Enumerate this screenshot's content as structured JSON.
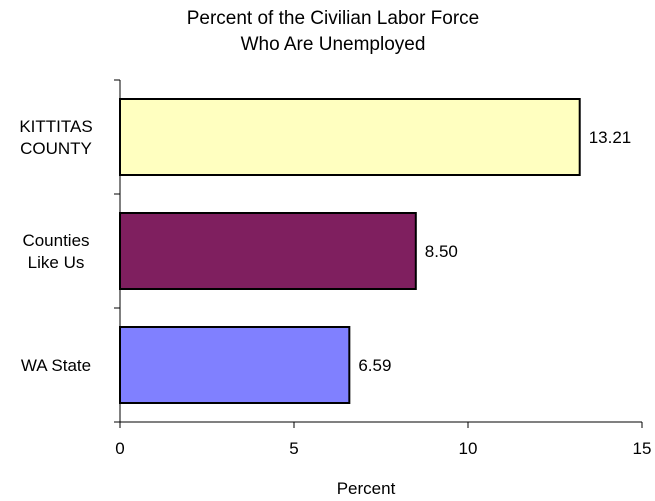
{
  "chart_data": {
    "type": "bar",
    "orientation": "horizontal",
    "title": [
      "Percent of the Civilian Labor Force",
      "Who Are Unemployed"
    ],
    "categories": [
      {
        "lines": [
          "KITTITAS",
          "COUNTY"
        ],
        "value": 13.21,
        "label": "13.21",
        "color": "#FFFFC0"
      },
      {
        "lines": [
          "Counties",
          "Like Us"
        ],
        "value": 8.5,
        "label": "8.50",
        "color": "#7F1F5F"
      },
      {
        "lines": [
          "WA State"
        ],
        "value": 6.59,
        "label": "6.59",
        "color": "#8080FF"
      }
    ],
    "xlabel": "Percent",
    "xlim": [
      0,
      15
    ],
    "xticks": [
      0,
      5,
      10,
      15
    ],
    "xtick_labels": [
      "0",
      "5",
      "10",
      "15"
    ],
    "grid": false,
    "legend": "none"
  }
}
